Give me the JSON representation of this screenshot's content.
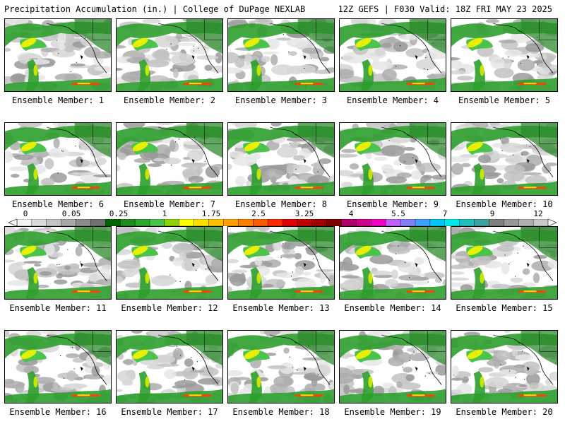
{
  "header": {
    "left": "Precipitation Accumulation (in.) | College of DuPage NEXLAB",
    "right": "12Z GEFS | F030 Valid: 18Z FRI MAY 23 2025"
  },
  "members": [
    {
      "label": "Ensemble Member: 1"
    },
    {
      "label": "Ensemble Member: 2"
    },
    {
      "label": "Ensemble Member: 3"
    },
    {
      "label": "Ensemble Member: 4"
    },
    {
      "label": "Ensemble Member: 5"
    },
    {
      "label": "Ensemble Member: 6"
    },
    {
      "label": "Ensemble Member: 7"
    },
    {
      "label": "Ensemble Member: 8"
    },
    {
      "label": "Ensemble Member: 9"
    },
    {
      "label": "Ensemble Member: 10"
    },
    {
      "label": "Ensemble Member: 11"
    },
    {
      "label": "Ensemble Member: 12"
    },
    {
      "label": "Ensemble Member: 13"
    },
    {
      "label": "Ensemble Member: 14"
    },
    {
      "label": "Ensemble Member: 15"
    },
    {
      "label": "Ensemble Member: 16"
    },
    {
      "label": "Ensemble Member: 17"
    },
    {
      "label": "Ensemble Member: 18"
    },
    {
      "label": "Ensemble Member: 19"
    },
    {
      "label": "Ensemble Member: 20"
    }
  ],
  "colorbar": {
    "labels": [
      "0",
      "0.05",
      "0.25",
      "1",
      "1.75",
      "2.5",
      "3.25",
      "4",
      "5.5",
      "7",
      "9",
      "12"
    ],
    "colors": [
      "#f4f4f4",
      "#dcdcdc",
      "#c4c4c4",
      "#a8a8a8",
      "#8c8c8c",
      "#707070",
      "#006400",
      "#1e8c1e",
      "#2ea82e",
      "#4cc34c",
      "#8fd400",
      "#ffff00",
      "#ffe000",
      "#ffc000",
      "#ffa000",
      "#ff8000",
      "#ff5a00",
      "#ff2800",
      "#e00000",
      "#c00000",
      "#a00000",
      "#800000",
      "#b0006a",
      "#d0008c",
      "#f000c0",
      "#c060ff",
      "#8080ff",
      "#40a0ff",
      "#00c8ff",
      "#00e8e8",
      "#20c0c0",
      "#40a0a0",
      "#808080",
      "#989898",
      "#b0b0b0",
      "#c8c8c8"
    ]
  }
}
